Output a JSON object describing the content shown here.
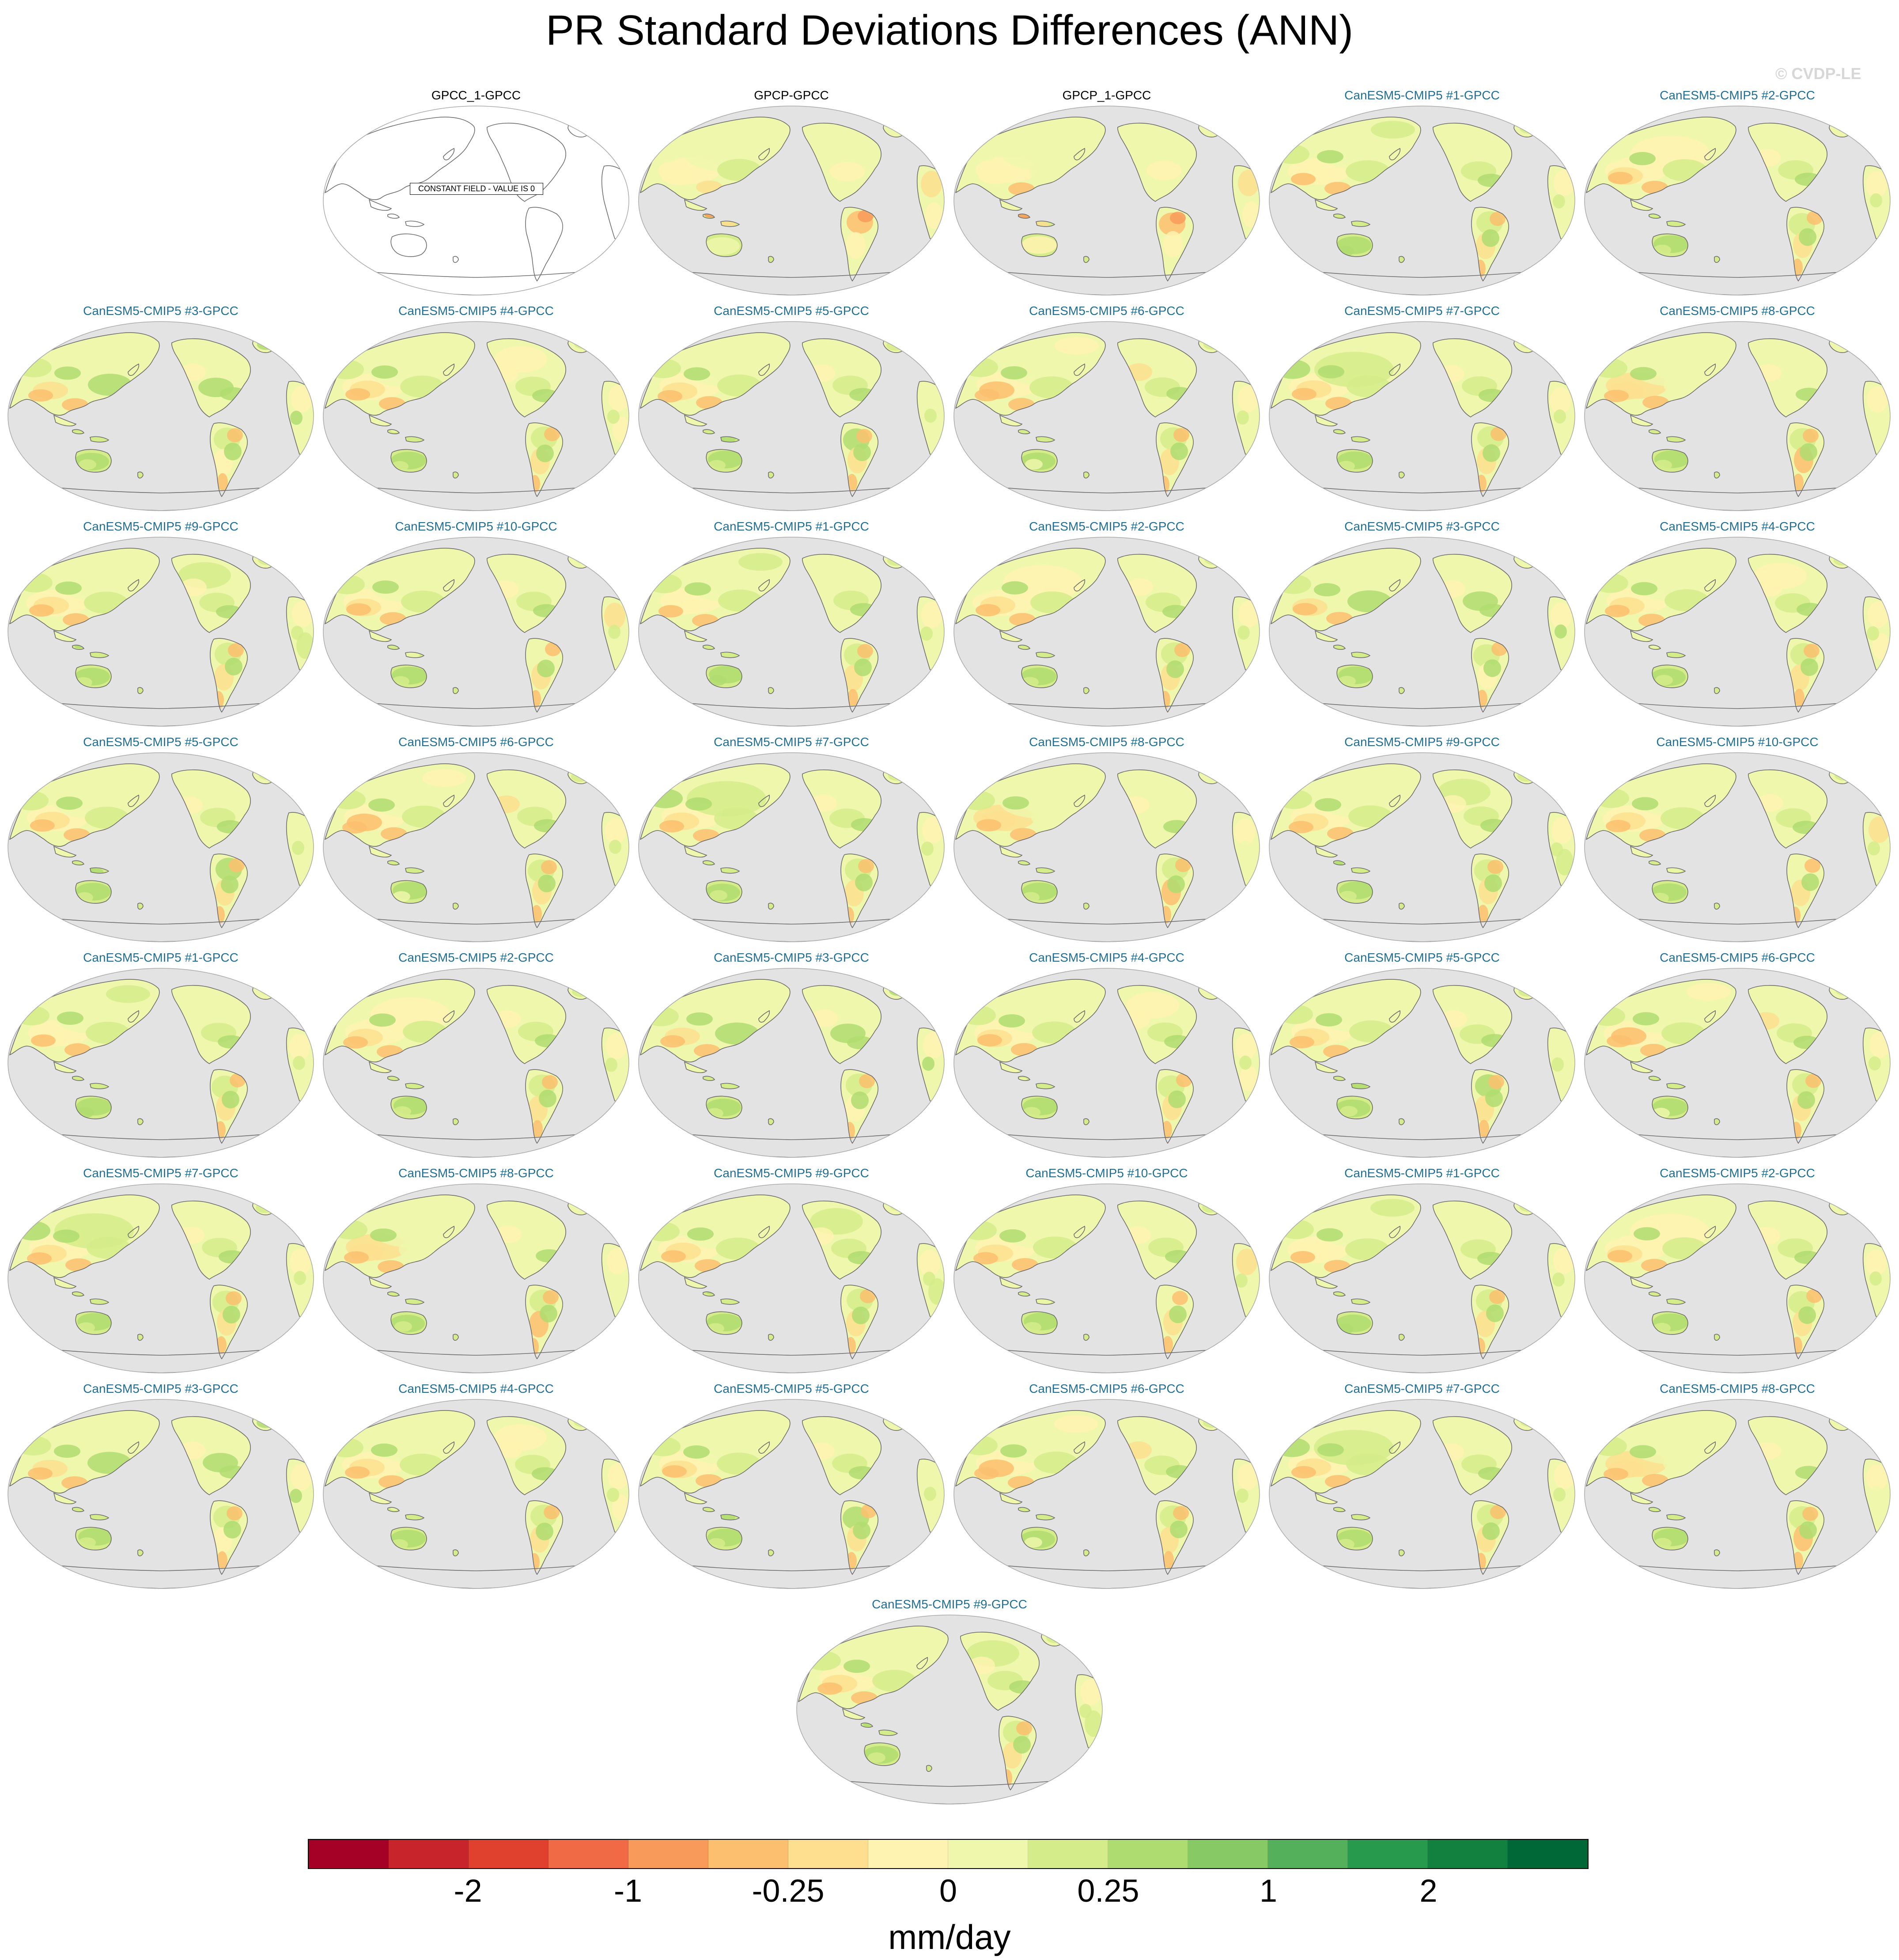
{
  "title": "PR Standard Deviations Differences (ANN)",
  "watermark": "© CVDP-LE",
  "obs_title_color": "#000000",
  "model_title_color": "#1f6f94",
  "ocean_color": "#e3e3e3",
  "panels": [
    {
      "title": "GPCC_1-GPCC",
      "kind": "constant",
      "note": "CONSTANT FIELD - VALUE IS 0"
    },
    {
      "title": "GPCP-GPCC",
      "kind": "obs"
    },
    {
      "title": "GPCP_1-GPCC",
      "kind": "obs"
    },
    {
      "title": "CanESM5-CMIP5 #1-GPCC",
      "kind": "model"
    },
    {
      "title": "CanESM5-CMIP5 #2-GPCC",
      "kind": "model"
    },
    {
      "title": "CanESM5-CMIP5 #3-GPCC",
      "kind": "model"
    },
    {
      "title": "CanESM5-CMIP5 #4-GPCC",
      "kind": "model"
    },
    {
      "title": "CanESM5-CMIP5 #5-GPCC",
      "kind": "model"
    },
    {
      "title": "CanESM5-CMIP5 #6-GPCC",
      "kind": "model"
    },
    {
      "title": "CanESM5-CMIP5 #7-GPCC",
      "kind": "model"
    },
    {
      "title": "CanESM5-CMIP5 #8-GPCC",
      "kind": "model"
    },
    {
      "title": "CanESM5-CMIP5 #9-GPCC",
      "kind": "model"
    },
    {
      "title": "CanESM5-CMIP5 #10-GPCC",
      "kind": "model"
    },
    {
      "title": "CanESM5-CMIP5 #1-GPCC",
      "kind": "model"
    },
    {
      "title": "CanESM5-CMIP5 #2-GPCC",
      "kind": "model"
    },
    {
      "title": "CanESM5-CMIP5 #3-GPCC",
      "kind": "model"
    },
    {
      "title": "CanESM5-CMIP5 #4-GPCC",
      "kind": "model"
    },
    {
      "title": "CanESM5-CMIP5 #5-GPCC",
      "kind": "model"
    },
    {
      "title": "CanESM5-CMIP5 #6-GPCC",
      "kind": "model"
    },
    {
      "title": "CanESM5-CMIP5 #7-GPCC",
      "kind": "model"
    },
    {
      "title": "CanESM5-CMIP5 #8-GPCC",
      "kind": "model"
    },
    {
      "title": "CanESM5-CMIP5 #9-GPCC",
      "kind": "model"
    },
    {
      "title": "CanESM5-CMIP5 #10-GPCC",
      "kind": "model"
    },
    {
      "title": "CanESM5-CMIP5 #1-GPCC",
      "kind": "model"
    },
    {
      "title": "CanESM5-CMIP5 #2-GPCC",
      "kind": "model"
    },
    {
      "title": "CanESM5-CMIP5 #3-GPCC",
      "kind": "model"
    },
    {
      "title": "CanESM5-CMIP5 #4-GPCC",
      "kind": "model"
    },
    {
      "title": "CanESM5-CMIP5 #5-GPCC",
      "kind": "model"
    },
    {
      "title": "CanESM5-CMIP5 #6-GPCC",
      "kind": "model"
    },
    {
      "title": "CanESM5-CMIP5 #7-GPCC",
      "kind": "model"
    },
    {
      "title": "CanESM5-CMIP5 #8-GPCC",
      "kind": "model"
    },
    {
      "title": "CanESM5-CMIP5 #9-GPCC",
      "kind": "model"
    },
    {
      "title": "CanESM5-CMIP5 #10-GPCC",
      "kind": "model"
    },
    {
      "title": "CanESM5-CMIP5 #1-GPCC",
      "kind": "model"
    },
    {
      "title": "CanESM5-CMIP5 #2-GPCC",
      "kind": "model"
    },
    {
      "title": "CanESM5-CMIP5 #3-GPCC",
      "kind": "model"
    },
    {
      "title": "CanESM5-CMIP5 #4-GPCC",
      "kind": "model"
    },
    {
      "title": "CanESM5-CMIP5 #5-GPCC",
      "kind": "model"
    },
    {
      "title": "CanESM5-CMIP5 #6-GPCC",
      "kind": "model"
    },
    {
      "title": "CanESM5-CMIP5 #7-GPCC",
      "kind": "model"
    },
    {
      "title": "CanESM5-CMIP5 #8-GPCC",
      "kind": "model"
    },
    {
      "title": "CanESM5-CMIP5 #9-GPCC",
      "kind": "model"
    }
  ],
  "colorbar": {
    "colors": [
      "#a50026",
      "#c8242b",
      "#e0402e",
      "#f06b45",
      "#f89a59",
      "#fbbf6f",
      "#fddf8f",
      "#fef3b0",
      "#eef7ac",
      "#d4ec89",
      "#afdc70",
      "#86c965",
      "#55b05b",
      "#279a4e",
      "#128140",
      "#006837"
    ],
    "tick_labels": [
      "-2",
      "-1",
      "-0.25",
      "0",
      "0.25",
      "1",
      "2"
    ],
    "tick_boundary_index": [
      2,
      4,
      6,
      8,
      10,
      12,
      14
    ],
    "units": "mm/day"
  }
}
